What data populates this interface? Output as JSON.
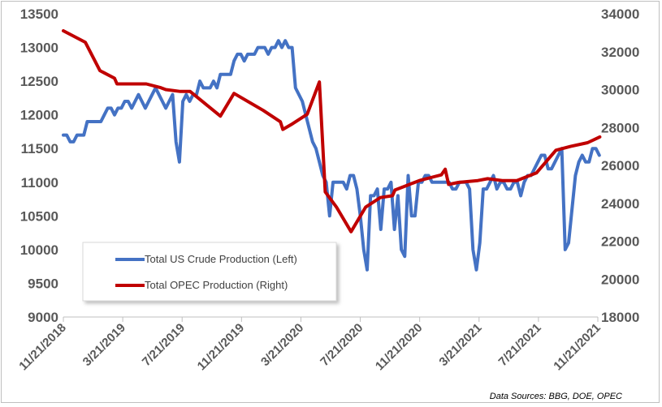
{
  "chart_data": {
    "type": "line",
    "title": "",
    "source_note": "Data Sources: BBG, DOE, OPEC",
    "x_tick_labels": [
      "11/21/2018",
      "3/21/2019",
      "7/21/2019",
      "11/21/2019",
      "3/21/2020",
      "7/21/2020",
      "11/21/2020",
      "3/21/2021",
      "7/21/2021",
      "11/21/2021"
    ],
    "y_left": {
      "ylim": [
        9000,
        13500
      ],
      "ticks": [
        9000,
        9500,
        10000,
        10500,
        11000,
        11500,
        12000,
        12500,
        13000,
        13500
      ]
    },
    "y_right": {
      "ylim": [
        18000,
        34000
      ],
      "ticks": [
        18000,
        20000,
        22000,
        24000,
        26000,
        28000,
        30000,
        32000,
        34000
      ]
    },
    "x_range_days": [
      0,
      1096
    ],
    "series": [
      {
        "name": "Total US Crude Production (Left)",
        "axis": "left",
        "color": "#4472C4",
        "points": [
          [
            0,
            11700
          ],
          [
            7,
            11700
          ],
          [
            14,
            11600
          ],
          [
            21,
            11600
          ],
          [
            28,
            11700
          ],
          [
            42,
            11700
          ],
          [
            49,
            11900
          ],
          [
            77,
            11900
          ],
          [
            84,
            12000
          ],
          [
            91,
            12100
          ],
          [
            98,
            12100
          ],
          [
            105,
            12000
          ],
          [
            112,
            12100
          ],
          [
            119,
            12100
          ],
          [
            126,
            12200
          ],
          [
            133,
            12200
          ],
          [
            140,
            12100
          ],
          [
            147,
            12200
          ],
          [
            154,
            12300
          ],
          [
            161,
            12200
          ],
          [
            168,
            12100
          ],
          [
            175,
            12200
          ],
          [
            182,
            12300
          ],
          [
            189,
            12400
          ],
          [
            196,
            12300
          ],
          [
            203,
            12200
          ],
          [
            210,
            12100
          ],
          [
            217,
            12200
          ],
          [
            224,
            12300
          ],
          [
            231,
            11600
          ],
          [
            238,
            11300
          ],
          [
            245,
            12200
          ],
          [
            252,
            12300
          ],
          [
            259,
            12200
          ],
          [
            266,
            12300
          ],
          [
            273,
            12300
          ],
          [
            280,
            12500
          ],
          [
            287,
            12400
          ],
          [
            294,
            12400
          ],
          [
            301,
            12400
          ],
          [
            308,
            12500
          ],
          [
            315,
            12400
          ],
          [
            322,
            12600
          ],
          [
            329,
            12600
          ],
          [
            336,
            12600
          ],
          [
            343,
            12600
          ],
          [
            350,
            12800
          ],
          [
            357,
            12900
          ],
          [
            364,
            12900
          ],
          [
            371,
            12800
          ],
          [
            378,
            12900
          ],
          [
            385,
            12900
          ],
          [
            392,
            12900
          ],
          [
            399,
            13000
          ],
          [
            406,
            13000
          ],
          [
            413,
            13000
          ],
          [
            420,
            12900
          ],
          [
            427,
            13000
          ],
          [
            434,
            13000
          ],
          [
            441,
            13100
          ],
          [
            448,
            13000
          ],
          [
            455,
            13100
          ],
          [
            462,
            13000
          ],
          [
            469,
            13000
          ],
          [
            476,
            12400
          ],
          [
            490,
            12200
          ],
          [
            504,
            11800
          ],
          [
            511,
            11600
          ],
          [
            518,
            11500
          ],
          [
            525,
            11300
          ],
          [
            532,
            11100
          ],
          [
            539,
            11000
          ],
          [
            546,
            10500
          ],
          [
            553,
            11000
          ],
          [
            560,
            11000
          ],
          [
            567,
            11000
          ],
          [
            574,
            11000
          ],
          [
            581,
            10900
          ],
          [
            588,
            11100
          ],
          [
            595,
            11100
          ],
          [
            602,
            10900
          ],
          [
            609,
            10500
          ],
          [
            616,
            10000
          ],
          [
            623,
            9700
          ],
          [
            630,
            10800
          ],
          [
            637,
            10800
          ],
          [
            644,
            10900
          ],
          [
            651,
            10300
          ],
          [
            658,
            10900
          ],
          [
            665,
            10900
          ],
          [
            672,
            11000
          ],
          [
            679,
            10300
          ],
          [
            686,
            10800
          ],
          [
            693,
            10000
          ],
          [
            700,
            9900
          ],
          [
            707,
            11100
          ],
          [
            714,
            10500
          ],
          [
            721,
            10500
          ],
          [
            728,
            11000
          ],
          [
            735,
            11000
          ],
          [
            742,
            11100
          ],
          [
            749,
            11100
          ],
          [
            756,
            11000
          ],
          [
            763,
            11000
          ],
          [
            770,
            11000
          ],
          [
            777,
            11000
          ],
          [
            784,
            11000
          ],
          [
            791,
            11000
          ],
          [
            798,
            10900
          ],
          [
            805,
            10900
          ],
          [
            812,
            11000
          ],
          [
            819,
            11000
          ],
          [
            826,
            11000
          ],
          [
            833,
            10900
          ],
          [
            840,
            10000
          ],
          [
            847,
            9700
          ],
          [
            854,
            10100
          ],
          [
            861,
            10900
          ],
          [
            868,
            10900
          ],
          [
            875,
            11000
          ],
          [
            882,
            11100
          ],
          [
            889,
            10900
          ],
          [
            896,
            11000
          ],
          [
            903,
            11000
          ],
          [
            910,
            10900
          ],
          [
            917,
            10900
          ],
          [
            924,
            11000
          ],
          [
            931,
            11000
          ],
          [
            938,
            10800
          ],
          [
            945,
            11000
          ],
          [
            952,
            11100
          ],
          [
            959,
            11100
          ],
          [
            966,
            11200
          ],
          [
            973,
            11300
          ],
          [
            980,
            11400
          ],
          [
            987,
            11400
          ],
          [
            994,
            11200
          ],
          [
            1001,
            11200
          ],
          [
            1008,
            11300
          ],
          [
            1015,
            11400
          ],
          [
            1022,
            11500
          ],
          [
            1029,
            10000
          ],
          [
            1036,
            10100
          ],
          [
            1043,
            10600
          ],
          [
            1050,
            11100
          ],
          [
            1057,
            11300
          ],
          [
            1064,
            11400
          ],
          [
            1071,
            11300
          ],
          [
            1078,
            11300
          ],
          [
            1085,
            11500
          ],
          [
            1092,
            11500
          ],
          [
            1099,
            11400
          ]
        ]
      },
      {
        "name": "Total OPEC Production (Right)",
        "axis": "right",
        "color": "#C00000",
        "points": [
          [
            0,
            33100
          ],
          [
            45,
            32500
          ],
          [
            75,
            31000
          ],
          [
            105,
            30600
          ],
          [
            110,
            30300
          ],
          [
            170,
            30300
          ],
          [
            200,
            30100
          ],
          [
            210,
            30000
          ],
          [
            240,
            29900
          ],
          [
            260,
            29900
          ],
          [
            322,
            28600
          ],
          [
            350,
            29800
          ],
          [
            410,
            28900
          ],
          [
            445,
            28300
          ],
          [
            450,
            27900
          ],
          [
            470,
            28200
          ],
          [
            500,
            28700
          ],
          [
            525,
            30400
          ],
          [
            537,
            24600
          ],
          [
            560,
            23800
          ],
          [
            590,
            22500
          ],
          [
            620,
            23800
          ],
          [
            650,
            24300
          ],
          [
            675,
            24400
          ],
          [
            680,
            24700
          ],
          [
            700,
            24900
          ],
          [
            730,
            25200
          ],
          [
            760,
            25400
          ],
          [
            775,
            25500
          ],
          [
            783,
            25800
          ],
          [
            790,
            25000
          ],
          [
            810,
            25100
          ],
          [
            850,
            25200
          ],
          [
            870,
            25300
          ],
          [
            900,
            25200
          ],
          [
            930,
            25200
          ],
          [
            970,
            25600
          ],
          [
            1000,
            26500
          ],
          [
            1010,
            26800
          ],
          [
            1040,
            27000
          ],
          [
            1075,
            27200
          ],
          [
            1100,
            27500
          ]
        ]
      }
    ]
  },
  "legend": {
    "items": [
      {
        "label": "Total US Crude Production (Left)",
        "color": "#4472C4"
      },
      {
        "label": "Total OPEC Production (Right)",
        "color": "#C00000"
      }
    ]
  }
}
